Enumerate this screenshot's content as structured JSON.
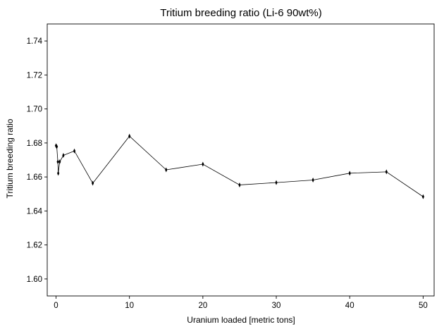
{
  "chart_data": {
    "type": "line",
    "title": "Tritium breeding ratio (Li-6 90wt%)",
    "xlabel": "Uranium loaded [metric tons]",
    "ylabel": "Tritium breeding ratio",
    "xlim": [
      -1.2,
      51.5
    ],
    "ylim": [
      1.59,
      1.75
    ],
    "xticks": [
      0,
      10,
      20,
      30,
      40,
      50
    ],
    "yticks": [
      1.6,
      1.62,
      1.64,
      1.66,
      1.68,
      1.7,
      1.72,
      1.74
    ],
    "xtick_labels": [
      "0",
      "10",
      "20",
      "30",
      "40",
      "50"
    ],
    "ytick_labels": [
      "1.60",
      "1.62",
      "1.64",
      "1.66",
      "1.68",
      "1.70",
      "1.72",
      "1.74"
    ],
    "grid": false,
    "legend": "none",
    "line_color": "#000000",
    "series": [
      {
        "x": [
          0.0,
          0.1,
          0.25,
          0.3,
          0.5,
          1.0,
          2.5,
          5.0,
          10.0,
          15.0,
          20.0,
          25.0,
          30.0,
          35.0,
          40.0,
          45.0,
          50.0
        ],
        "y": [
          1.6784,
          1.6778,
          1.6689,
          1.6622,
          1.6689,
          1.6727,
          1.6753,
          1.6563,
          1.684,
          1.6642,
          1.6675,
          1.6553,
          1.6567,
          1.6582,
          1.6622,
          1.663,
          1.6484
        ]
      }
    ]
  }
}
